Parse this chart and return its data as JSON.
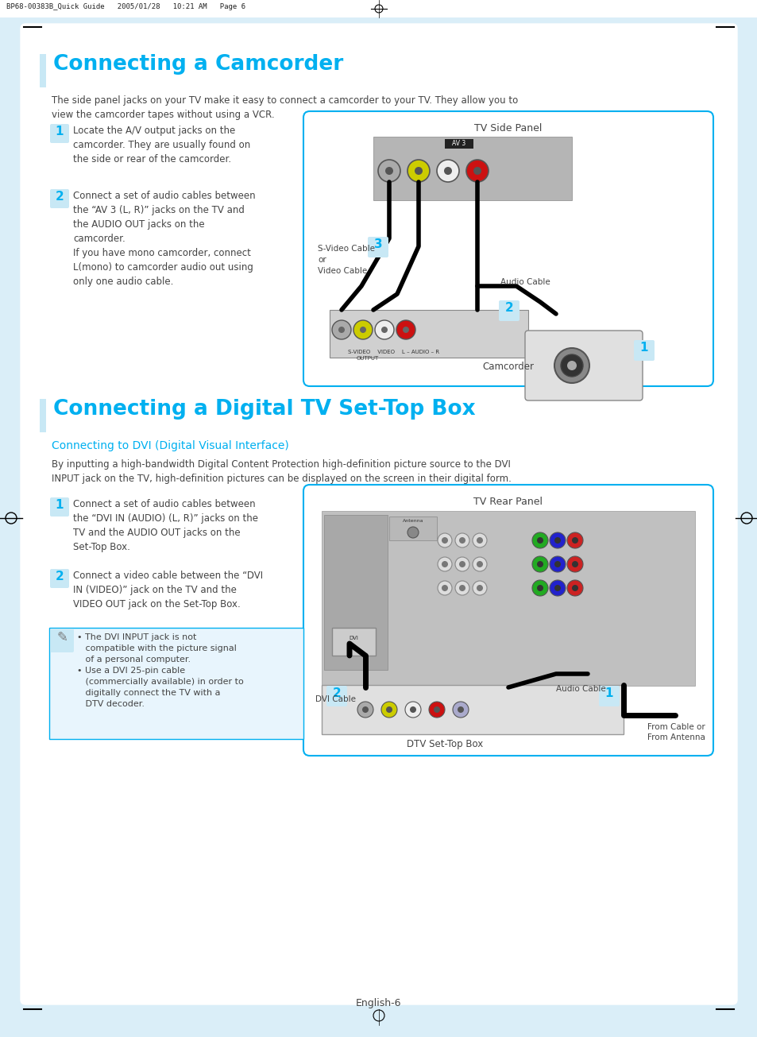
{
  "page_bg": "#daeef8",
  "content_bg": "#ffffff",
  "header_text": "BP68-00383B_Quick Guide   2005/01/28   10:21 AM   Page 6",
  "cyan_color": "#00b0f0",
  "light_cyan_bar": "#c8e8f5",
  "dark_text": "#444444",
  "section1_title": "Connecting a Camcorder",
  "section1_intro": "The side panel jacks on your TV make it easy to connect a camcorder to your TV. They allow you to\nview the camcorder tapes without using a VCR.",
  "section1_step1_text": "Locate the A/V output jacks on the\ncamcorder. They are usually found on\nthe side or rear of the camcorder.",
  "section1_step2_text": "Connect a set of audio cables between\nthe “AV 3 (L, R)” jacks on the TV and\nthe AUDIO OUT jacks on the\ncamcorder.\nIf you have mono camcorder, connect\nL(mono) to camcorder audio out using\nonly one audio cable.",
  "section1_diagram_title": "TV Side Panel",
  "section2_title": "Connecting a Digital TV Set-Top Box",
  "section2_subtitle": "Connecting to DVI (Digital Visual Interface)",
  "section2_intro": "By inputting a high-bandwidth Digital Content Protection high-definition picture source to the DVI\nINPUT jack on the TV, high-definition pictures can be displayed on the screen in their digital form.",
  "section2_step1_text": "Connect a set of audio cables between\nthe “DVI IN (AUDIO) (L, R)” jacks on the\nTV and the AUDIO OUT jacks on the\nSet-Top Box.",
  "section2_step2_text": "Connect a video cable between the “DVI\nIN (VIDEO)” jack on the TV and the\nVIDEO OUT jack on the Set-Top Box.",
  "section2_note_text": "• The DVI INPUT jack is not\n   compatible with the picture signal\n   of a personal computer.\n• Use a DVI 25-pin cable\n   (commercially available) in order to\n   digitally connect the TV with a\n   DTV decoder.",
  "section2_diagram_title": "TV Rear Panel",
  "footer_text": "English-6"
}
